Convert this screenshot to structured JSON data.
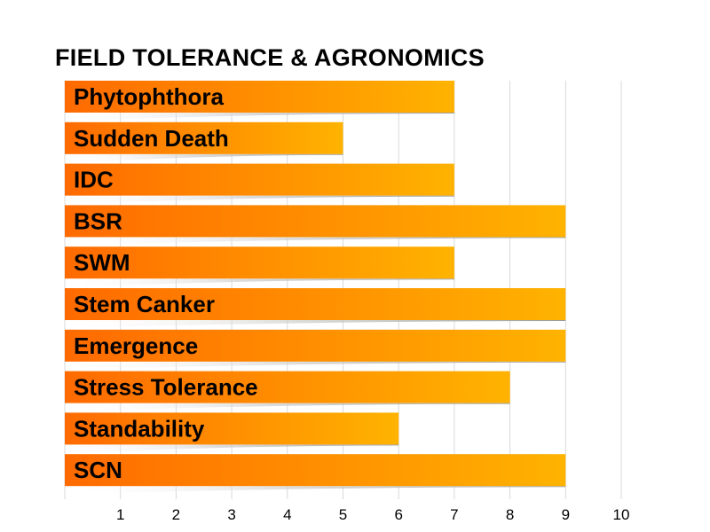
{
  "chart_data": {
    "type": "bar",
    "orientation": "horizontal",
    "title": "FIELD TOLERANCE & AGRONOMICS",
    "categories": [
      "Phytophthora",
      "Sudden Death",
      "IDC",
      "BSR",
      "SWM",
      "Stem Canker",
      "Emergence",
      "Stress Tolerance",
      "Standability",
      "SCN"
    ],
    "values": [
      7,
      5,
      7,
      9,
      7,
      9,
      9,
      8,
      6,
      9
    ],
    "xlim": [
      0,
      10
    ],
    "xticks": [
      "1",
      "2",
      "3",
      "4",
      "5",
      "6",
      "7",
      "8",
      "9",
      "10"
    ],
    "grid": true,
    "xlabel": "",
    "ylabel": "",
    "colors": {
      "bar_start": "#ff6a00",
      "bar_end": "#ffb300",
      "grid": "#d9d9d9",
      "shadow": "#9a9a9a"
    }
  }
}
